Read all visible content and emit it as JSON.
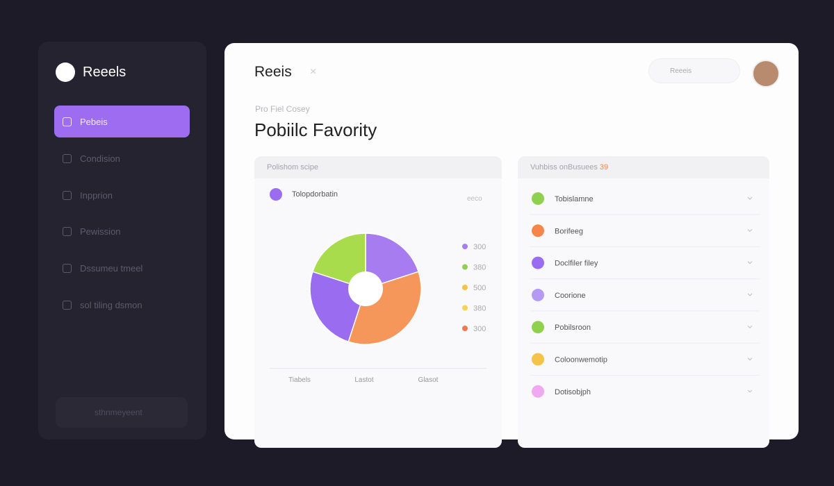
{
  "sidebar": {
    "brand": "Reeels",
    "nav": [
      "Pebeis",
      "Condision",
      "Inpprion",
      "Pewission",
      "Dssumeu tmeel",
      "sol tiling dsmon"
    ],
    "footer": "sthnmeyeent"
  },
  "header": {
    "title": "Reeis",
    "search": "Reeeis"
  },
  "page": {
    "subtitle": "Pro Fiel Cosey",
    "title": "Pobiilc Favority"
  },
  "chart_card": {
    "header": "Polishom scipe",
    "row_label": "Tolopdorbatin",
    "legend_tag": "eeco",
    "chart": {
      "type": "pie",
      "values": [
        20,
        35,
        25,
        20
      ],
      "colors": [
        "#a77cf0",
        "#f5975a",
        "#9a6cf0",
        "#a9dc4c"
      ]
    },
    "legend": [
      {
        "label": "300",
        "color": "#a77cf0"
      },
      {
        "label": "380",
        "color": "#8fd14f"
      },
      {
        "label": "500",
        "color": "#f5c24a"
      },
      {
        "label": "380",
        "color": "#f5d35a"
      },
      {
        "label": "300",
        "color": "#ef7a4a"
      }
    ],
    "axis_labels": [
      "Tiabels",
      "Lastot",
      "Glasot"
    ]
  },
  "list_card": {
    "header": "Vuhbiss onBusuees",
    "badge": "39",
    "items": [
      {
        "label": "Tobislamne",
        "color": "#8fd14f"
      },
      {
        "label": "Borifeeg",
        "color": "#f5854a"
      },
      {
        "label": "Doclfiler filey",
        "color": "#9a6cf0"
      },
      {
        "label": "Coorione",
        "color": "#b49af5"
      },
      {
        "label": "Pobilsroon",
        "color": "#8fd14f"
      },
      {
        "label": "Coloonwemotip",
        "color": "#f5c24a"
      },
      {
        "label": "Dotisobjph",
        "color": "#f0a8f0"
      }
    ]
  }
}
